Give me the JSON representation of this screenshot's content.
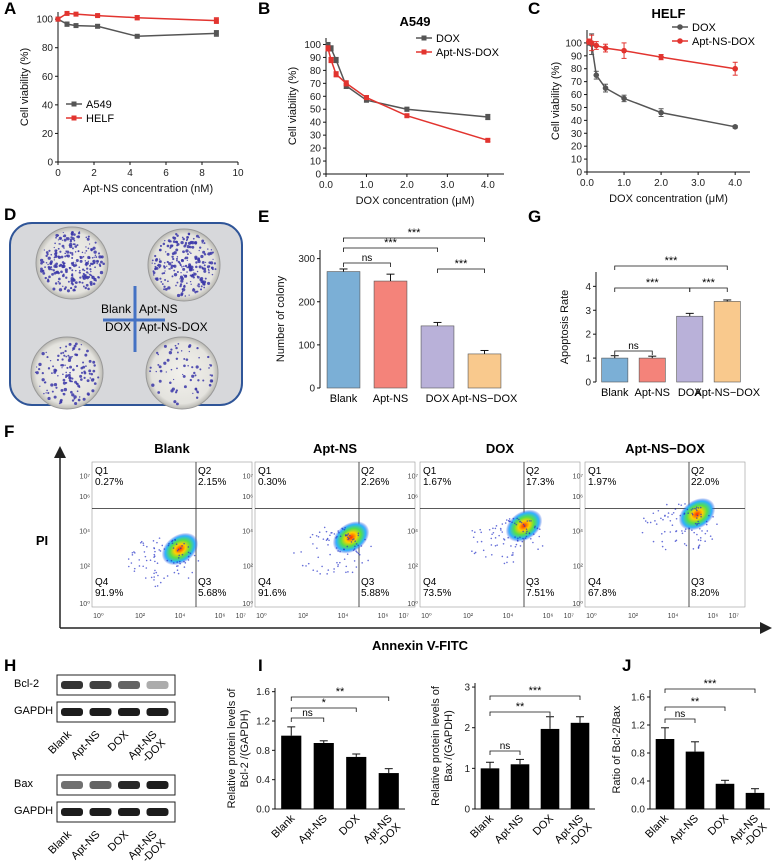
{
  "panel_letters": [
    "A",
    "B",
    "C",
    "D",
    "E",
    "F",
    "G",
    "H",
    "I",
    "J"
  ],
  "chart_data": [
    {
      "panel": "A",
      "type": "line",
      "title": "",
      "xlabel": "Apt-NS concentration (nM)",
      "ylabel": "Cell viability (%)",
      "xlim": [
        0,
        10
      ],
      "ylim": [
        0,
        105
      ],
      "xticks": [
        "0",
        "2",
        "4",
        "6",
        "8",
        "10"
      ],
      "yticks": [
        "0",
        "20",
        "40",
        "60",
        "80",
        "100"
      ],
      "series": [
        {
          "name": "A549",
          "color": "#555555",
          "x": [
            0,
            0.5,
            1.0,
            2.2,
            4.4,
            8.8
          ],
          "y": [
            100,
            96.5,
            95.5,
            95,
            88,
            90
          ],
          "err": [
            0.8,
            1.5,
            0.8,
            1.2,
            1.0,
            2.0
          ]
        },
        {
          "name": "HELF",
          "color": "#e2342f",
          "x": [
            0,
            0.5,
            1.0,
            2.2,
            4.4,
            8.8
          ],
          "y": [
            100,
            104,
            103.5,
            102.5,
            101,
            99
          ],
          "err": [
            0.5,
            1.0,
            1.0,
            0.8,
            1.5,
            2.0
          ]
        }
      ],
      "legend": "bottom-left"
    },
    {
      "panel": "B",
      "type": "line",
      "title": "A549",
      "xlabel": "DOX concentration (μM)",
      "ylabel": "Cell viability (%)",
      "xlim": [
        0,
        4.4
      ],
      "ylim": [
        0,
        105
      ],
      "xticks": [
        "0.0",
        "1.0",
        "2.0",
        "3.0",
        "4.0"
      ],
      "yticks": [
        "0",
        "10",
        "20",
        "30",
        "40",
        "50",
        "60",
        "70",
        "80",
        "90",
        "100"
      ],
      "series": [
        {
          "name": "DOX",
          "color": "#555555",
          "x": [
            0.05,
            0.125,
            0.25,
            0.5,
            1.0,
            2.0,
            4.0
          ],
          "y": [
            100,
            97,
            88,
            68,
            57,
            50,
            44
          ],
          "err": [
            1.5,
            2.0,
            2.0,
            2.0,
            1.5,
            1.5,
            2.0
          ]
        },
        {
          "name": "Apt-NS-DOX",
          "color": "#e2342f",
          "x": [
            0.05,
            0.125,
            0.25,
            0.5,
            1.0,
            2.0,
            4.0
          ],
          "y": [
            97,
            88,
            77,
            70,
            59,
            45,
            26
          ],
          "err": [
            2.0,
            2.0,
            2.0,
            2.0,
            1.5,
            1.0,
            1.0
          ]
        }
      ],
      "legend": "top-right"
    },
    {
      "panel": "C",
      "type": "line",
      "title": "HELF",
      "xlabel": "DOX concentration (μM)",
      "ylabel": "Cell viability (%)",
      "xlim": [
        0,
        4.4
      ],
      "ylim": [
        0,
        110
      ],
      "xticks": [
        "0.0",
        "1.0",
        "2.0",
        "3.0",
        "4.0"
      ],
      "yticks": [
        "0",
        "10",
        "20",
        "30",
        "40",
        "50",
        "60",
        "70",
        "80",
        "90",
        "100"
      ],
      "series": [
        {
          "name": "DOX",
          "color": "#555555",
          "x": [
            0.05,
            0.125,
            0.25,
            0.5,
            1.0,
            2.0,
            4.0
          ],
          "y": [
            100,
            99,
            75,
            65,
            57,
            46,
            35
          ],
          "err": [
            1.5,
            8.0,
            3.0,
            3.0,
            2.5,
            3.0,
            1.0
          ]
        },
        {
          "name": "Apt-NS-DOX",
          "color": "#e2342f",
          "x": [
            0.05,
            0.125,
            0.25,
            0.5,
            1.0,
            2.0,
            4.0
          ],
          "y": [
            101,
            100,
            98,
            96,
            94,
            89,
            80
          ],
          "err": [
            2.0,
            6.0,
            3.0,
            3.0,
            6.0,
            2.0,
            5.0
          ]
        }
      ],
      "legend": "top-right"
    },
    {
      "panel": "E",
      "type": "bar",
      "title": "",
      "xlabel": "",
      "ylabel": "Number of colony",
      "ylim": [
        0,
        320
      ],
      "yticks": [
        "0",
        "100",
        "200",
        "300"
      ],
      "categories": [
        "Blank",
        "Apt-NS",
        "DOX",
        "Apt-NS−DOX"
      ],
      "values": [
        270,
        248,
        144,
        79
      ],
      "errors": [
        6,
        16,
        8,
        8
      ],
      "colors": [
        "#7bafd6",
        "#f4837a",
        "#b9b1d9",
        "#f9c98d"
      ],
      "significance": [
        {
          "from": 0,
          "to": 1,
          "label": "ns"
        },
        {
          "from": 0,
          "to": 2,
          "label": "***"
        },
        {
          "from": 0,
          "to": 3,
          "label": "***"
        },
        {
          "from": 2,
          "to": 3,
          "label": "***"
        }
      ]
    },
    {
      "panel": "G",
      "type": "bar",
      "title": "",
      "xlabel": "",
      "ylabel": "Apoptosis Rate",
      "ylim": [
        0,
        4.6
      ],
      "yticks": [
        "0",
        "1",
        "2",
        "3",
        "4"
      ],
      "categories": [
        "Blank",
        "Apt-NS",
        "DOX",
        "Apt-NS−DOX"
      ],
      "values": [
        1.0,
        1.0,
        2.75,
        3.37
      ],
      "errors": [
        0.1,
        0.08,
        0.12,
        0.06
      ],
      "colors": [
        "#7bafd6",
        "#f4837a",
        "#b9b1d9",
        "#f9c98d"
      ],
      "significance": [
        {
          "from": 0,
          "to": 1,
          "label": "ns"
        },
        {
          "from": 0,
          "to": 2,
          "label": "***"
        },
        {
          "from": 0,
          "to": 3,
          "label": "***"
        },
        {
          "from": 2,
          "to": 3,
          "label": "***"
        }
      ]
    },
    {
      "panel": "I-left",
      "type": "bar",
      "title": "",
      "xlabel": "",
      "ylabel": "Relative protein levels of Bcl-2 /(GAPDH)",
      "ylim": [
        0,
        1.65
      ],
      "yticks": [
        "0.0",
        "0.4",
        "0.8",
        "1.2",
        "1.6"
      ],
      "categories": [
        "Blank",
        "Apt-NS",
        "DOX",
        "Apt-NS -DOX"
      ],
      "values": [
        1.0,
        0.9,
        0.71,
        0.49
      ],
      "errors": [
        0.12,
        0.03,
        0.04,
        0.06
      ],
      "colors": [
        "#000000",
        "#000000",
        "#000000",
        "#000000"
      ],
      "significance": [
        {
          "from": 0,
          "to": 1,
          "label": "ns"
        },
        {
          "from": 0,
          "to": 2,
          "label": "*"
        },
        {
          "from": 0,
          "to": 3,
          "label": "**"
        }
      ]
    },
    {
      "panel": "I-right",
      "type": "bar",
      "title": "",
      "xlabel": "",
      "ylabel": "Relative protein levels of Bax /(GAPDH)",
      "ylim": [
        0,
        3.1
      ],
      "yticks": [
        "0",
        "1",
        "2",
        "3"
      ],
      "categories": [
        "Blank",
        "Apt-NS",
        "DOX",
        "Apt-NS -DOX"
      ],
      "values": [
        1.0,
        1.1,
        1.97,
        2.12
      ],
      "errors": [
        0.15,
        0.12,
        0.3,
        0.15
      ],
      "colors": [
        "#000000",
        "#000000",
        "#000000",
        "#000000"
      ],
      "significance": [
        {
          "from": 0,
          "to": 1,
          "label": "ns"
        },
        {
          "from": 0,
          "to": 2,
          "label": "**"
        },
        {
          "from": 0,
          "to": 3,
          "label": "***"
        }
      ]
    },
    {
      "panel": "J",
      "type": "bar",
      "title": "",
      "xlabel": "",
      "ylabel": "Ratio of Bcl-2/Bax",
      "ylim": [
        0,
        1.7
      ],
      "yticks": [
        "0.0",
        "0.4",
        "0.8",
        "1.2",
        "1.6"
      ],
      "categories": [
        "Blank",
        "Apt-NS",
        "DOX",
        "Apt-NS -DOX"
      ],
      "values": [
        1.0,
        0.82,
        0.36,
        0.23
      ],
      "errors": [
        0.16,
        0.14,
        0.05,
        0.06
      ],
      "colors": [
        "#000000",
        "#000000",
        "#000000",
        "#000000"
      ],
      "significance": [
        {
          "from": 0,
          "to": 1,
          "label": "ns"
        },
        {
          "from": 0,
          "to": 2,
          "label": "**"
        },
        {
          "from": 0,
          "to": 3,
          "label": "***"
        }
      ]
    }
  ],
  "panel_D": {
    "labels": {
      "blank": "Blank",
      "apt_ns": "Apt-NS",
      "dox": "DOX",
      "apt_ns_dox": "Apt-NS-DOX"
    }
  },
  "panel_F": {
    "y_axis_label": "PI",
    "x_axis_label": "Annexin V-FITC",
    "tick_labels": [
      "10⁰",
      "10²",
      "10⁴",
      "10⁶",
      "10⁷"
    ],
    "plots": [
      {
        "title": "Blank",
        "q1": "Q1\n0.27%",
        "q2": "Q2\n2.15%",
        "q3": "Q3\n5.68%",
        "q4": "Q4\n91.9%",
        "q1_pct": 0.27,
        "q2_pct": 2.15,
        "q3_pct": 5.68,
        "q4_pct": 91.9
      },
      {
        "title": "Apt-NS",
        "q1": "Q1\n0.30%",
        "q2": "Q2\n2.26%",
        "q3": "Q3\n5.88%",
        "q4": "Q4\n91.6%",
        "q1_pct": 0.3,
        "q2_pct": 2.26,
        "q3_pct": 5.88,
        "q4_pct": 91.6
      },
      {
        "title": "DOX",
        "q1": "Q1\n1.67%",
        "q2": "Q2\n17.3%",
        "q3": "Q3\n7.51%",
        "q4": "Q4\n73.5%",
        "q1_pct": 1.67,
        "q2_pct": 17.3,
        "q3_pct": 7.51,
        "q4_pct": 73.5
      },
      {
        "title": "Apt-NS−DOX",
        "q1": "Q1\n1.97%",
        "q2": "Q2\n22.0%",
        "q3": "Q3\n8.20%",
        "q4": "Q4\n67.8%",
        "q1_pct": 1.97,
        "q2_pct": 22.0,
        "q3_pct": 8.2,
        "q4_pct": 67.8
      }
    ]
  },
  "panel_H": {
    "rows": [
      "Bcl-2",
      "GAPDH",
      "Bax",
      "GAPDH"
    ],
    "lanes": [
      "Blank",
      "Apt-NS",
      "DOX",
      "Apt-NS -DOX"
    ]
  }
}
